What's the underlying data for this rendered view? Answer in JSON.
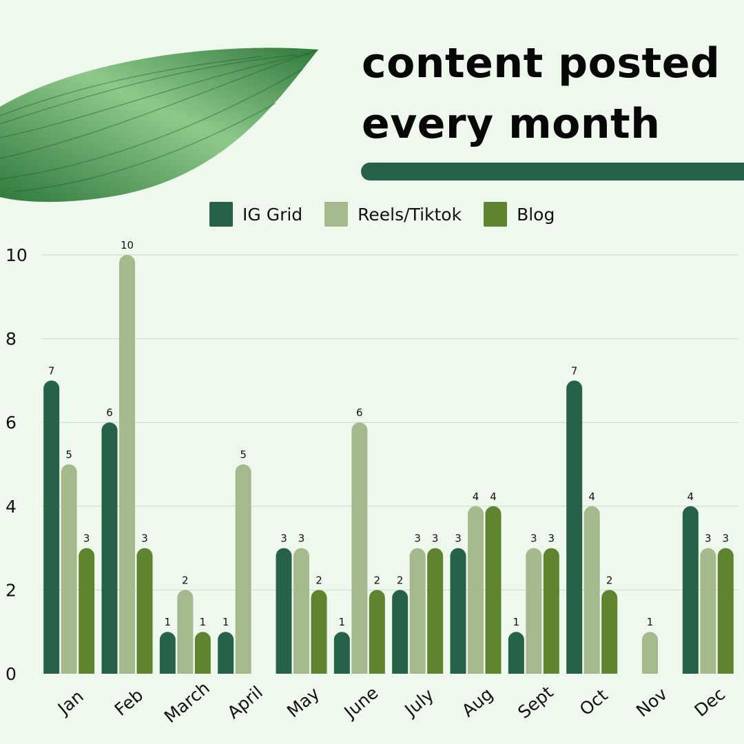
{
  "title_lines": [
    "content posted",
    "every month"
  ],
  "colors": {
    "background": "#eef8ec",
    "accent_bar": "#266249",
    "gridline": "#c9d8c6",
    "leaf_dark": "#2f7a3c",
    "leaf_light": "#8fc98a"
  },
  "chart_data": {
    "type": "bar",
    "title": "content posted every month",
    "xlabel": "",
    "ylabel": "",
    "ylim": [
      0,
      10
    ],
    "yticks": [
      0,
      2,
      4,
      6,
      8,
      10
    ],
    "grid": true,
    "legend_position": "top",
    "categories": [
      "Jan",
      "Feb",
      "March",
      "April",
      "May",
      "June",
      "July",
      "Aug",
      "Sept",
      "Oct",
      "Nov",
      "Dec"
    ],
    "series": [
      {
        "name": "IG Grid",
        "color": "#266249",
        "values": [
          7,
          6,
          1,
          1,
          3,
          1,
          2,
          3,
          1,
          7,
          0,
          4
        ]
      },
      {
        "name": "Reels/Tiktok",
        "color": "#a6b98c",
        "values": [
          5,
          10,
          2,
          5,
          3,
          6,
          3,
          4,
          3,
          4,
          1,
          3
        ]
      },
      {
        "name": "Blog",
        "color": "#5e842f",
        "values": [
          3,
          3,
          1,
          0,
          2,
          2,
          3,
          4,
          3,
          2,
          0,
          3
        ]
      }
    ]
  }
}
